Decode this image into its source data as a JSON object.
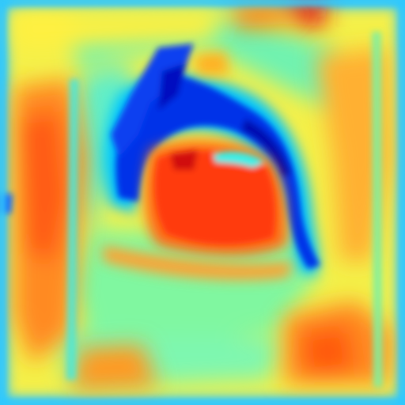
{
  "image": {
    "kind": "heatmap",
    "palette": "jet",
    "palette_colors": [
      "#00007f",
      "#0000ff",
      "#007fff",
      "#00ffff",
      "#7fff7f",
      "#ffff00",
      "#ff7f00",
      "#ff0000",
      "#7f0000"
    ],
    "border_color": "#2ec8ff",
    "dominant_colors": [
      "#ff4a10",
      "#ff9a22",
      "#ffe83a",
      "#48f0c8",
      "#00a6ff",
      "#0010d0"
    ]
  }
}
